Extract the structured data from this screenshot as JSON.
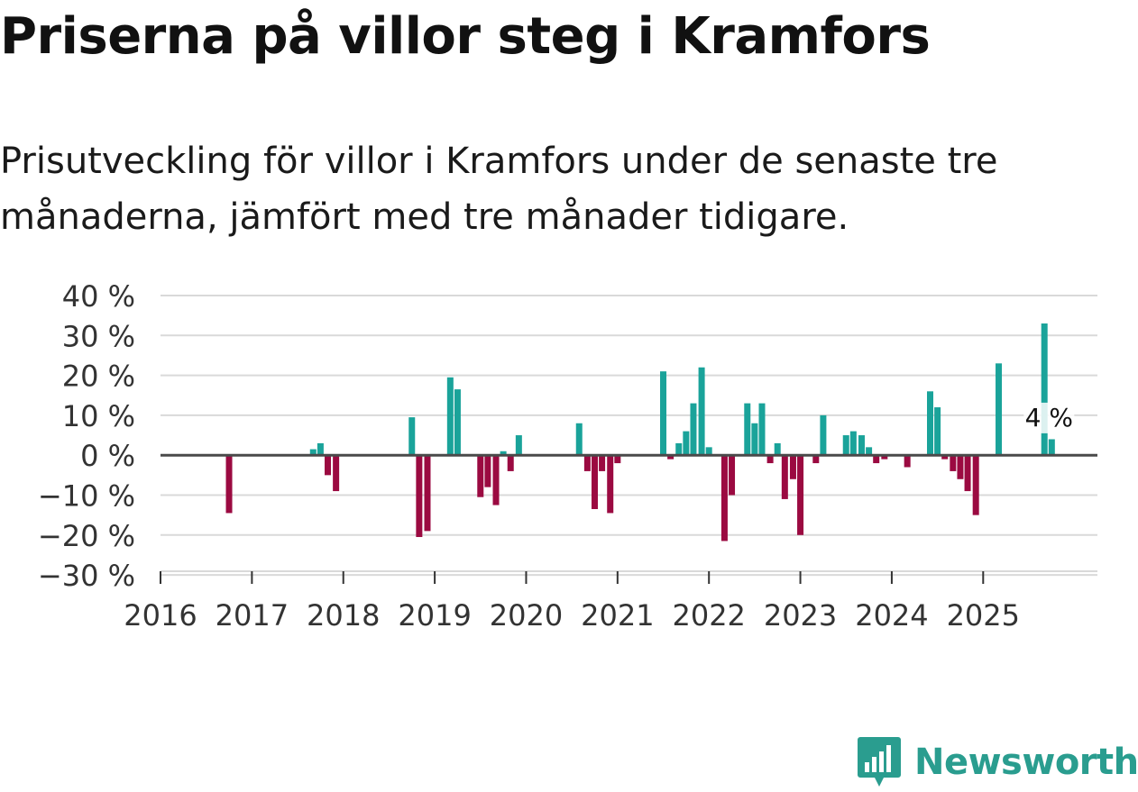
{
  "title": "Priserna på villor steg i Kramfors",
  "subtitle": "Prisutveckling för villor i Kramfors under de senaste tre månaderna, jämfört med tre månader tidigare.",
  "logo": {
    "text": "Newsworthy",
    "icon": "newsworthy-bar-chart-icon"
  },
  "colors": {
    "positive": "#1aa39a",
    "negative": "#9b0a41",
    "grid": "#d9d9d9",
    "zero_line": "#4a4a4a",
    "axis_text": "#333333"
  },
  "chart_data": {
    "type": "bar",
    "title": "Priserna på villor steg i Kramfors",
    "xlabel": "",
    "ylabel": "",
    "x_unit": "year (fractional)",
    "xlim": [
      2016,
      2026.25
    ],
    "ylim": [
      -30,
      40
    ],
    "yticks": [
      40,
      30,
      20,
      10,
      0,
      -10,
      -20,
      -30
    ],
    "ytick_labels": [
      "40 %",
      "30 %",
      "20 %",
      "10 %",
      "0 %",
      "−10 %",
      "−20 %",
      "−30 %"
    ],
    "xticks": [
      2016,
      2017,
      2018,
      2019,
      2020,
      2021,
      2022,
      2023,
      2024,
      2025
    ],
    "xtick_labels": [
      "2016",
      "2017",
      "2018",
      "2019",
      "2020",
      "2021",
      "2022",
      "2023",
      "2024",
      "2025"
    ],
    "grid": true,
    "annotation": {
      "text": "4 %",
      "x": 2025.75,
      "value": 4
    },
    "points": [
      {
        "x": 2016.75,
        "value": -14.5
      },
      {
        "x": 2017.67,
        "value": 1.5
      },
      {
        "x": 2017.75,
        "value": 3
      },
      {
        "x": 2017.83,
        "value": -5
      },
      {
        "x": 2017.92,
        "value": -9
      },
      {
        "x": 2018.75,
        "value": 9.5
      },
      {
        "x": 2018.83,
        "value": -20.5
      },
      {
        "x": 2018.92,
        "value": -19
      },
      {
        "x": 2019.17,
        "value": 19.5
      },
      {
        "x": 2019.25,
        "value": 16.5
      },
      {
        "x": 2019.5,
        "value": -10.5
      },
      {
        "x": 2019.58,
        "value": -8
      },
      {
        "x": 2019.67,
        "value": -12.5
      },
      {
        "x": 2019.75,
        "value": 1
      },
      {
        "x": 2019.83,
        "value": -4
      },
      {
        "x": 2019.92,
        "value": 5
      },
      {
        "x": 2020.58,
        "value": 8
      },
      {
        "x": 2020.67,
        "value": -4
      },
      {
        "x": 2020.75,
        "value": -13.5
      },
      {
        "x": 2020.83,
        "value": -4
      },
      {
        "x": 2020.92,
        "value": -14.5
      },
      {
        "x": 2021.0,
        "value": -2
      },
      {
        "x": 2021.5,
        "value": 21
      },
      {
        "x": 2021.58,
        "value": -1
      },
      {
        "x": 2021.67,
        "value": 3
      },
      {
        "x": 2021.75,
        "value": 6
      },
      {
        "x": 2021.83,
        "value": 13
      },
      {
        "x": 2021.92,
        "value": 22
      },
      {
        "x": 2022.0,
        "value": 2
      },
      {
        "x": 2022.17,
        "value": -21.5
      },
      {
        "x": 2022.25,
        "value": -10
      },
      {
        "x": 2022.42,
        "value": 13
      },
      {
        "x": 2022.5,
        "value": 8
      },
      {
        "x": 2022.58,
        "value": 13
      },
      {
        "x": 2022.67,
        "value": -2
      },
      {
        "x": 2022.75,
        "value": 3
      },
      {
        "x": 2022.83,
        "value": -11
      },
      {
        "x": 2022.92,
        "value": -6
      },
      {
        "x": 2023.0,
        "value": -20
      },
      {
        "x": 2023.17,
        "value": -2
      },
      {
        "x": 2023.25,
        "value": 10
      },
      {
        "x": 2023.5,
        "value": 5
      },
      {
        "x": 2023.58,
        "value": 6
      },
      {
        "x": 2023.67,
        "value": 5
      },
      {
        "x": 2023.75,
        "value": 2
      },
      {
        "x": 2023.83,
        "value": -2
      },
      {
        "x": 2023.92,
        "value": -1
      },
      {
        "x": 2024.17,
        "value": -3
      },
      {
        "x": 2024.42,
        "value": 16
      },
      {
        "x": 2024.5,
        "value": 12
      },
      {
        "x": 2024.58,
        "value": -1
      },
      {
        "x": 2024.67,
        "value": -4
      },
      {
        "x": 2024.75,
        "value": -6
      },
      {
        "x": 2024.83,
        "value": -9
      },
      {
        "x": 2024.92,
        "value": -15
      },
      {
        "x": 2025.17,
        "value": 23
      },
      {
        "x": 2025.67,
        "value": 33
      },
      {
        "x": 2025.75,
        "value": 4
      }
    ]
  }
}
